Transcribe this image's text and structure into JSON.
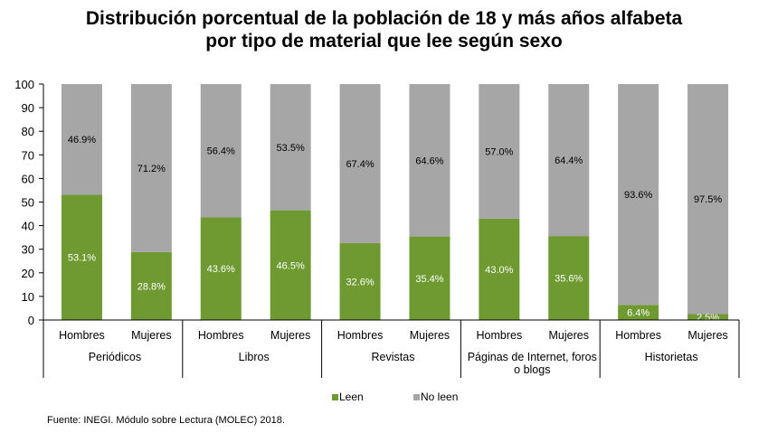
{
  "chart_data": {
    "type": "bar",
    "stacked": true,
    "title_lines": [
      "Distribución porcentual de la población de 18 y más años alfabeta",
      "por tipo de material que lee según sexo"
    ],
    "groups": [
      "Periódicos",
      "Libros",
      "Revistas",
      "Páginas de Internet, foros o blogs",
      "Historietas"
    ],
    "group_label_lines": [
      [
        "Periódicos"
      ],
      [
        "Libros"
      ],
      [
        "Revistas"
      ],
      [
        "Páginas de Internet, foros",
        "o blogs"
      ],
      [
        "Historietas"
      ]
    ],
    "categories": [
      "Hombres",
      "Mujeres"
    ],
    "series": [
      {
        "name": "Leen",
        "color": "#6e9a31",
        "values": [
          [
            53.1,
            28.8
          ],
          [
            43.6,
            46.5
          ],
          [
            32.6,
            35.4
          ],
          [
            43.0,
            35.6
          ],
          [
            6.4,
            2.5
          ]
        ],
        "labels": [
          [
            "53.1%",
            "28.8%"
          ],
          [
            "43.6%",
            "46.5%"
          ],
          [
            "32.6%",
            "35.4%"
          ],
          [
            "43.0%",
            "35.6%"
          ],
          [
            "6.4%",
            "2.5%"
          ]
        ]
      },
      {
        "name": "No leen",
        "color": "#a6a6a6",
        "values": [
          [
            46.9,
            71.2
          ],
          [
            56.4,
            53.5
          ],
          [
            67.4,
            64.6
          ],
          [
            57.0,
            64.4
          ],
          [
            93.6,
            97.5
          ]
        ],
        "labels": [
          [
            "46.9%",
            "71.2%"
          ],
          [
            "56.4%",
            "53.5%"
          ],
          [
            "67.4%",
            "64.6%"
          ],
          [
            "57.0%",
            "64.4%"
          ],
          [
            "93.6%",
            "97.5%"
          ]
        ]
      }
    ],
    "ylim": [
      0,
      100
    ],
    "yticks": [
      0,
      10,
      20,
      30,
      40,
      50,
      60,
      70,
      80,
      90,
      100
    ],
    "grid": false,
    "legend_position": "bottom"
  },
  "source": "Fuente: INEGI. Módulo sobre Lectura (MOLEC) 2018."
}
